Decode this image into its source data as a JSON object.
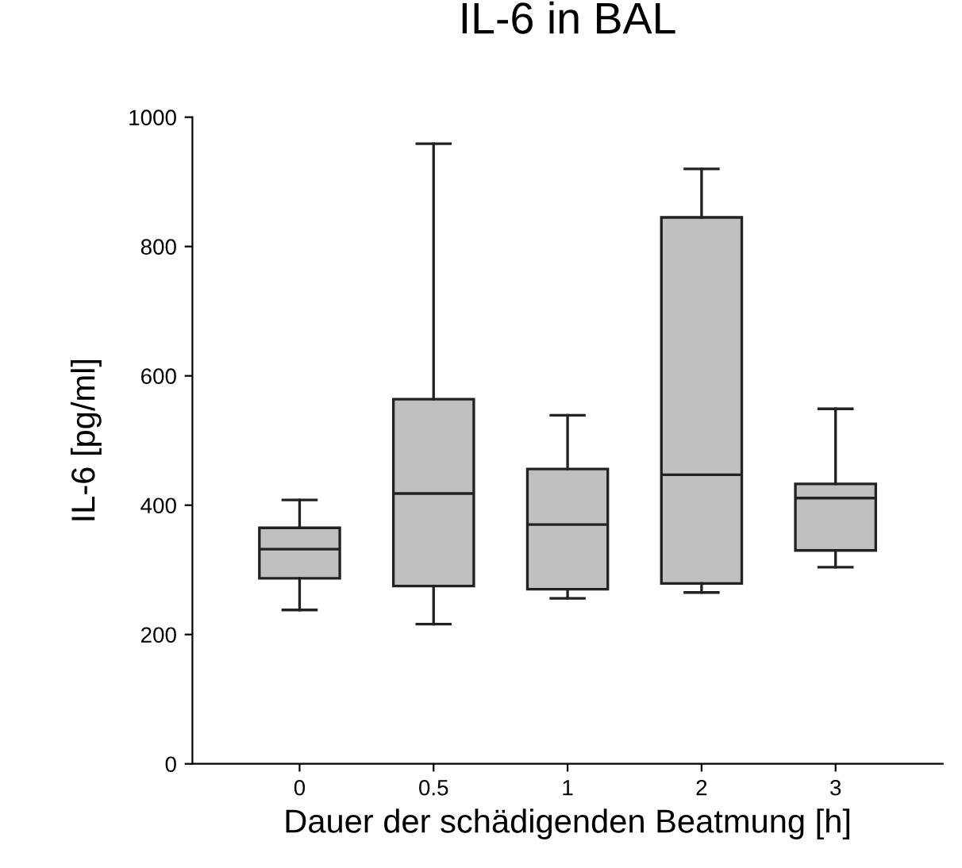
{
  "chart_data": {
    "type": "box",
    "title": "IL-6 in BAL",
    "xlabel": "Dauer der schädigenden Beatmung [h]",
    "ylabel": "IL-6 [pg/ml]",
    "categories": [
      "0",
      "0.5",
      "1",
      "2",
      "3"
    ],
    "boxes": [
      {
        "low": 238,
        "q1": 287,
        "median": 332,
        "q3": 365,
        "high": 408
      },
      {
        "low": 216,
        "q1": 275,
        "median": 418,
        "q3": 564,
        "high": 959
      },
      {
        "low": 256,
        "q1": 270,
        "median": 370,
        "q3": 456,
        "high": 539
      },
      {
        "low": 265,
        "q1": 279,
        "median": 447,
        "q3": 845,
        "high": 920
      },
      {
        "low": 304,
        "q1": 330,
        "median": 411,
        "q3": 433,
        "high": 549
      }
    ],
    "color": "#c0c0c0",
    "ylim": [
      0,
      1000
    ],
    "yticks": [
      0,
      200,
      400,
      600,
      800,
      1000
    ],
    "grid": false,
    "legend": false
  }
}
